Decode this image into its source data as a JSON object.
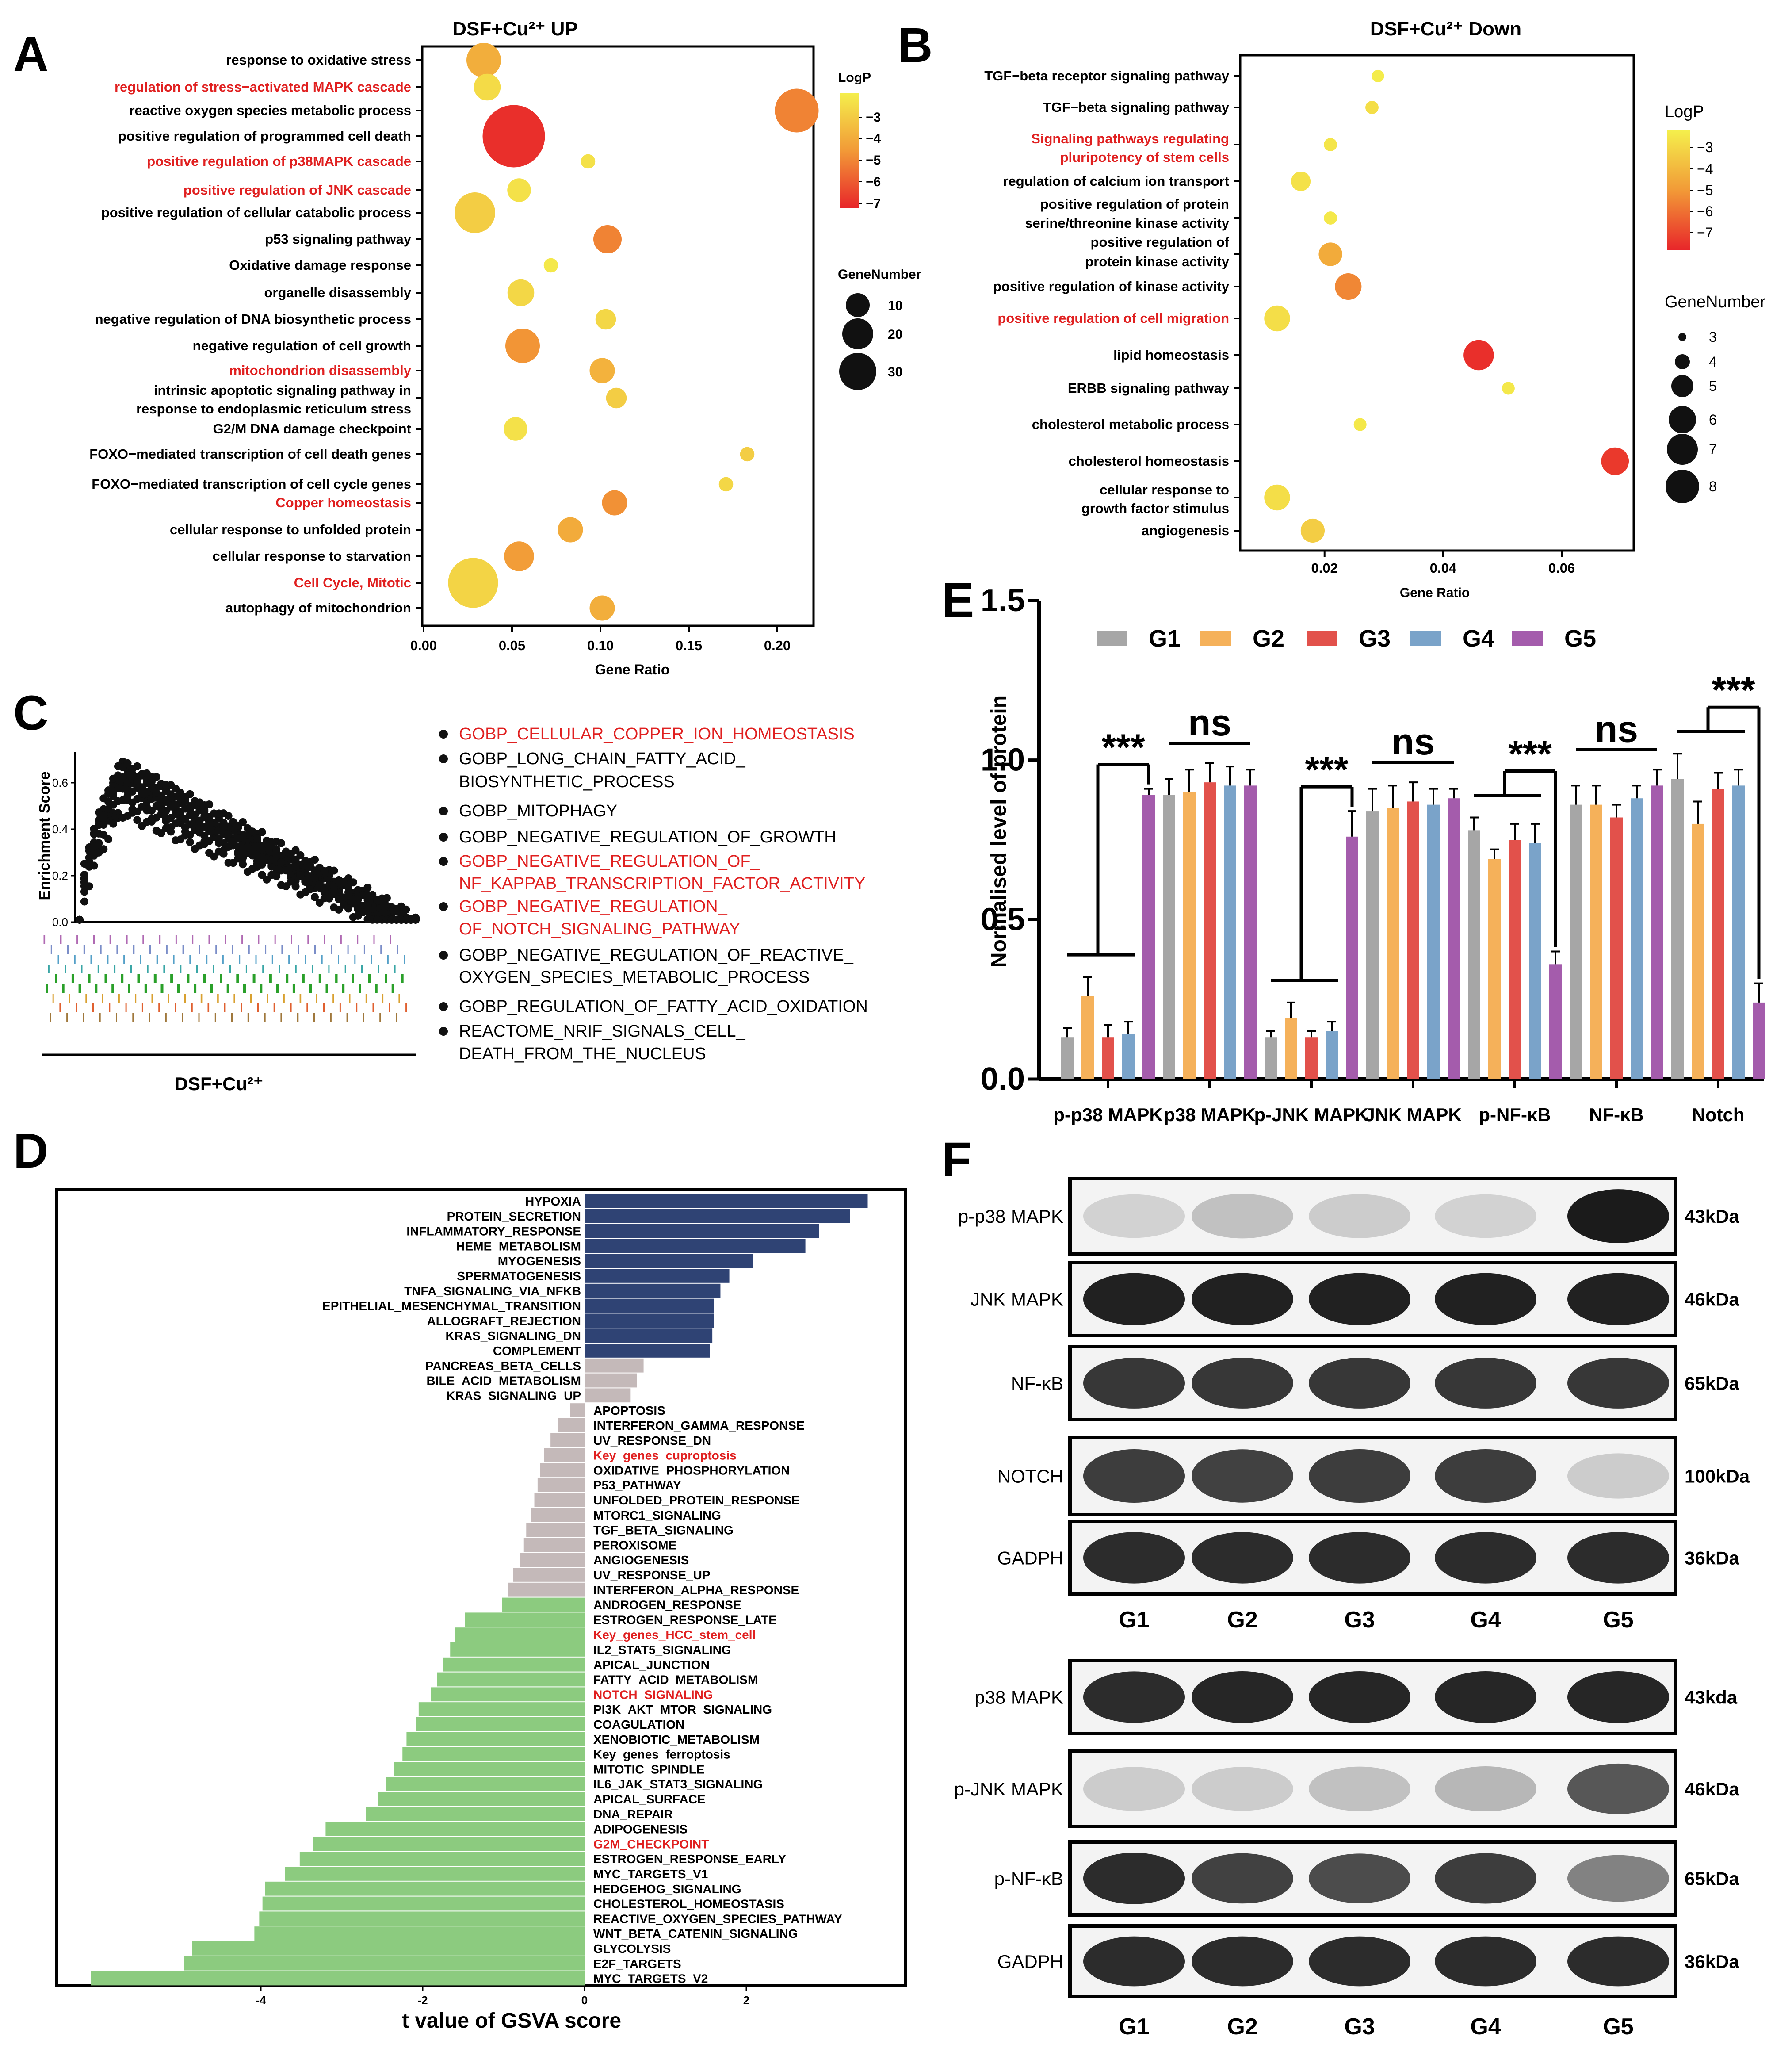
{
  "panel_letters": {
    "a": "A",
    "b": "B",
    "c": "C",
    "d": "D",
    "e": "E",
    "f": "F"
  },
  "panelA": {
    "title": "DSF+Cu²⁺ UP",
    "xlabel": "Gene Ratio",
    "xticks": [
      0.0,
      0.05,
      0.1,
      0.15,
      0.2
    ],
    "xtick_labels": [
      "0.00",
      "0.05",
      "0.10",
      "0.15",
      "0.20"
    ],
    "xlim": [
      0,
      0.22
    ],
    "logp_title": "LogP",
    "logp_ticks": [
      "−3",
      "−4",
      "−5",
      "−6",
      "−7"
    ],
    "genenumber_title": "GeneNumber",
    "genenumber_values": [
      "10",
      "20",
      "30"
    ],
    "terms": [
      {
        "label": "response to oxidative stress",
        "ratio": 0.034,
        "genes": 16,
        "logp": -4.5,
        "red": false
      },
      {
        "label": "regulation of stress−activated MAPK cascade",
        "ratio": 0.036,
        "genes": 11,
        "logp": -3.2,
        "red": true
      },
      {
        "label": "reactive oxygen species metabolic process",
        "ratio": 0.211,
        "genes": 22,
        "logp": -5.6,
        "red": false
      },
      {
        "label": "positive regulation of programmed cell death",
        "ratio": 0.051,
        "genes": 34,
        "logp": -7.4,
        "red": false
      },
      {
        "label": "positive regulation of p38MAPK cascade",
        "ratio": 0.093,
        "genes": 3,
        "logp": -3.0,
        "red": true
      },
      {
        "label": "positive regulation of JNK cascade",
        "ratio": 0.054,
        "genes": 9,
        "logp": -3.0,
        "red": true
      },
      {
        "label": "positive regulation of cellular catabolic process",
        "ratio": 0.029,
        "genes": 20,
        "logp": -3.6,
        "red": false
      },
      {
        "label": "p53 signaling pathway",
        "ratio": 0.104,
        "genes": 12,
        "logp": -5.6,
        "red": false
      },
      {
        "label": "Oxidative damage response",
        "ratio": 0.072,
        "genes": 3,
        "logp": -2.8,
        "red": false
      },
      {
        "label": "organelle disassembly",
        "ratio": 0.055,
        "genes": 11,
        "logp": -3.3,
        "red": false
      },
      {
        "label": "negative regulation of DNA biosynthetic process",
        "ratio": 0.103,
        "genes": 7,
        "logp": -3.3,
        "red": false
      },
      {
        "label": "negative regulation of cell growth",
        "ratio": 0.056,
        "genes": 16,
        "logp": -5.2,
        "red": false
      },
      {
        "label": "mitochondrion disassembly",
        "ratio": 0.101,
        "genes": 10,
        "logp": -4.4,
        "red": true
      },
      {
        "label": "intrinsic apoptotic signaling pathway in response to endoplasmic reticulum stress",
        "ratio": 0.109,
        "genes": 7,
        "logp": -3.6,
        "red": false
      },
      {
        "label": "G2/M DNA damage checkpoint",
        "ratio": 0.052,
        "genes": 9,
        "logp": -3.0,
        "red": false
      },
      {
        "label": "FOXO−mediated transcription of cell death genes",
        "ratio": 0.183,
        "genes": 3,
        "logp": -3.6,
        "red": false
      },
      {
        "label": "FOXO−mediated transcription of cell cycle genes",
        "ratio": 0.171,
        "genes": 3,
        "logp": -3.3,
        "red": false
      },
      {
        "label": "Copper homeostasis",
        "ratio": 0.108,
        "genes": 10,
        "logp": -5.3,
        "red": true
      },
      {
        "label": "cellular response to unfolded protein",
        "ratio": 0.083,
        "genes": 10,
        "logp": -4.6,
        "red": false
      },
      {
        "label": "cellular response to starvation",
        "ratio": 0.054,
        "genes": 13,
        "logp": -5.0,
        "red": false
      },
      {
        "label": "Cell Cycle, Mitotic",
        "ratio": 0.028,
        "genes": 26,
        "logp": -3.4,
        "red": true
      },
      {
        "label": "autophagy of mitochondrion",
        "ratio": 0.101,
        "genes": 10,
        "logp": -4.5,
        "red": false
      }
    ]
  },
  "panelB": {
    "title": "DSF+Cu²⁺ Down",
    "xlabel": "Gene Ratio",
    "xticks": [
      0.02,
      0.04,
      0.06
    ],
    "xtick_labels": [
      "0.02",
      "0.04",
      "0.06"
    ],
    "xlim": [
      0.006,
      0.072
    ],
    "logp_title": "LogP",
    "logp_ticks": [
      "−3",
      "−4",
      "−5",
      "−6",
      "−7"
    ],
    "genenumber_title": "GeneNumber",
    "genenumber_values": [
      "3",
      "4",
      "5",
      "6",
      "7",
      "8"
    ],
    "terms": [
      {
        "label": "TGF−beta receptor signaling pathway",
        "ratio": 0.029,
        "genes": 2.4,
        "logp": -2.7,
        "red": false
      },
      {
        "label": "TGF−beta signaling pathway",
        "ratio": 0.028,
        "genes": 2.6,
        "logp": -3.1,
        "red": false
      },
      {
        "label": "Signaling pathways regulating pluripotency of stem cells",
        "ratio": 0.021,
        "genes": 2.6,
        "logp": -2.9,
        "red": true
      },
      {
        "label": "regulation of calcium ion transport",
        "ratio": 0.016,
        "genes": 4.3,
        "logp": -3.0,
        "red": false
      },
      {
        "label": "positive regulation of protein serine/threonine kinase activity",
        "ratio": 0.021,
        "genes": 2.6,
        "logp": -2.8,
        "red": false
      },
      {
        "label": "positive regulation of protein kinase activity",
        "ratio": 0.021,
        "genes": 5.4,
        "logp": -4.6,
        "red": false
      },
      {
        "label": "positive regulation of kinase activity",
        "ratio": 0.024,
        "genes": 6.2,
        "logp": -5.5,
        "red": false
      },
      {
        "label": "positive regulation of cell migration",
        "ratio": 0.012,
        "genes": 6.0,
        "logp": -3.1,
        "red": true
      },
      {
        "label": "lipid homeostasis",
        "ratio": 0.046,
        "genes": 7.2,
        "logp": -7.4,
        "red": false
      },
      {
        "label": "ERBB signaling pathway",
        "ratio": 0.051,
        "genes": 2.5,
        "logp": -2.8,
        "red": false
      },
      {
        "label": "cholesterol metabolic process",
        "ratio": 0.026,
        "genes": 2.5,
        "logp": -2.8,
        "red": false
      },
      {
        "label": "cholesterol homeostasis",
        "ratio": 0.069,
        "genes": 6.5,
        "logp": -7.2,
        "red": false
      },
      {
        "label": "cellular response to growth factor stimulus",
        "ratio": 0.012,
        "genes": 6.0,
        "logp": -3.1,
        "red": false
      },
      {
        "label": "angiogenesis",
        "ratio": 0.018,
        "genes": 5.5,
        "logp": -3.6,
        "red": false
      }
    ]
  },
  "panelC": {
    "ylabel": "Enrichment Score",
    "yticks": [
      "0.0",
      "0.2",
      "0.4",
      "0.6"
    ],
    "xlabel": "DSF+Cu²⁺",
    "legend": [
      {
        "lines": [
          "GOBP_CELLULAR_COPPER_ION_HOMEOSTASIS"
        ],
        "red": true
      },
      {
        "lines": [
          "GOBP_LONG_CHAIN_FATTY_ACID_",
          "BIOSYNTHETIC_PROCESS"
        ],
        "red": false
      },
      {
        "lines": [
          "GOBP_MITOPHAGY"
        ],
        "red": false
      },
      {
        "lines": [
          "GOBP_NEGATIVE_REGULATION_OF_GROWTH"
        ],
        "red": false
      },
      {
        "lines": [
          "GOBP_NEGATIVE_REGULATION_OF_",
          "NF_KAPPAB_TRANSCRIPTION_FACTOR_ACTIVITY"
        ],
        "red": true
      },
      {
        "lines": [
          "GOBP_NEGATIVE_REGULATION_",
          "OF_NOTCH_SIGNALING_PATHWAY"
        ],
        "red": true
      },
      {
        "lines": [
          "GOBP_NEGATIVE_REGULATION_OF_REACTIVE_",
          "OXYGEN_SPECIES_METABOLIC_PROCESS"
        ],
        "red": false
      },
      {
        "lines": [
          "GOBP_REGULATION_OF_FATTY_ACID_OXIDATION"
        ],
        "red": false
      },
      {
        "lines": [
          "REACTOME_NRIF_SIGNALS_CELL_",
          "DEATH_FROM_THE_NUCLEUS"
        ],
        "red": false
      }
    ]
  },
  "panelD": {
    "xlabel": "t value of GSVA score",
    "xticks": [
      -4,
      -2,
      0,
      2
    ],
    "xtick_labels": [
      "-4",
      "-2",
      "0",
      "2"
    ],
    "xlim": [
      -6.5,
      4.0
    ],
    "colors": {
      "up": "#2f4374",
      "neutral": "#c4b9b9",
      "down": "#8ccb7f",
      "red": "#e02020"
    },
    "bars": [
      {
        "label": "HYPOXIA",
        "t": 3.5,
        "cat": "up",
        "red": false
      },
      {
        "label": "PROTEIN_SECRETION",
        "t": 3.28,
        "cat": "up",
        "red": false
      },
      {
        "label": "INFLAMMATORY_RESPONSE",
        "t": 2.9,
        "cat": "up",
        "red": false
      },
      {
        "label": "HEME_METABOLISM",
        "t": 2.73,
        "cat": "up",
        "red": false
      },
      {
        "label": "MYOGENESIS",
        "t": 2.08,
        "cat": "up",
        "red": false
      },
      {
        "label": "SPERMATOGENESIS",
        "t": 1.79,
        "cat": "up",
        "red": false
      },
      {
        "label": "TNFA_SIGNALING_VIA_NFKB",
        "t": 1.68,
        "cat": "up",
        "red": false
      },
      {
        "label": "EPITHELIAL_MESENCHYMAL_TRANSITION",
        "t": 1.6,
        "cat": "up",
        "red": false
      },
      {
        "label": "ALLOGRAFT_REJECTION",
        "t": 1.6,
        "cat": "up",
        "red": false
      },
      {
        "label": "KRAS_SIGNALING_DN",
        "t": 1.58,
        "cat": "up",
        "red": false
      },
      {
        "label": "COMPLEMENT",
        "t": 1.55,
        "cat": "up",
        "red": false
      },
      {
        "label": "PANCREAS_BETA_CELLS",
        "t": 0.73,
        "cat": "neutral",
        "red": false
      },
      {
        "label": "BILE_ACID_METABOLISM",
        "t": 0.65,
        "cat": "neutral",
        "red": false
      },
      {
        "label": "KRAS_SIGNALING_UP",
        "t": 0.57,
        "cat": "neutral",
        "red": false
      },
      {
        "label": "APOPTOSIS",
        "t": -0.18,
        "cat": "neutral",
        "red": false
      },
      {
        "label": "INTERFERON_GAMMA_RESPONSE",
        "t": -0.33,
        "cat": "neutral",
        "red": false
      },
      {
        "label": "UV_RESPONSE_DN",
        "t": -0.42,
        "cat": "neutral",
        "red": false
      },
      {
        "label": "Key_genes_cuproptosis",
        "t": -0.5,
        "cat": "neutral",
        "red": true
      },
      {
        "label": "OXIDATIVE_PHOSPHORYLATION",
        "t": -0.55,
        "cat": "neutral",
        "red": false
      },
      {
        "label": "P53_PATHWAY",
        "t": -0.58,
        "cat": "neutral",
        "red": false
      },
      {
        "label": "UNFOLDED_PROTEIN_RESPONSE",
        "t": -0.62,
        "cat": "neutral",
        "red": false
      },
      {
        "label": "MTORC1_SIGNALING",
        "t": -0.66,
        "cat": "neutral",
        "red": false
      },
      {
        "label": "TGF_BETA_SIGNALING",
        "t": -0.72,
        "cat": "neutral",
        "red": false
      },
      {
        "label": "PEROXISOME",
        "t": -0.75,
        "cat": "neutral",
        "red": false
      },
      {
        "label": "ANGIOGENESIS",
        "t": -0.8,
        "cat": "neutral",
        "red": false
      },
      {
        "label": "UV_RESPONSE_UP",
        "t": -0.88,
        "cat": "neutral",
        "red": false
      },
      {
        "label": "INTERFERON_ALPHA_RESPONSE",
        "t": -0.95,
        "cat": "neutral",
        "red": false
      },
      {
        "label": "ANDROGEN_RESPONSE",
        "t": -1.02,
        "cat": "down",
        "red": false
      },
      {
        "label": "ESTROGEN_RESPONSE_LATE",
        "t": -1.48,
        "cat": "down",
        "red": false
      },
      {
        "label": "Key_genes_HCC_stem_cell",
        "t": -1.6,
        "cat": "down",
        "red": true
      },
      {
        "label": "IL2_STAT5_SIGNALING",
        "t": -1.66,
        "cat": "down",
        "red": false
      },
      {
        "label": "APICAL_JUNCTION",
        "t": -1.75,
        "cat": "down",
        "red": false
      },
      {
        "label": "FATTY_ACID_METABOLISM",
        "t": -1.82,
        "cat": "down",
        "red": false
      },
      {
        "label": "NOTCH_SIGNALING",
        "t": -1.9,
        "cat": "down",
        "red": true
      },
      {
        "label": "PI3K_AKT_MTOR_SIGNALING",
        "t": -2.05,
        "cat": "down",
        "red": false
      },
      {
        "label": "COAGULATION",
        "t": -2.08,
        "cat": "down",
        "red": false
      },
      {
        "label": "XENOBIOTIC_METABOLISM",
        "t": -2.2,
        "cat": "down",
        "red": false
      },
      {
        "label": "Key_genes_ferroptosis",
        "t": -2.25,
        "cat": "down",
        "red": false
      },
      {
        "label": "MITOTIC_SPINDLE",
        "t": -2.35,
        "cat": "down",
        "red": false
      },
      {
        "label": "IL6_JAK_STAT3_SIGNALING",
        "t": -2.45,
        "cat": "down",
        "red": false
      },
      {
        "label": "APICAL_SURFACE",
        "t": -2.55,
        "cat": "down",
        "red": false
      },
      {
        "label": "DNA_REPAIR",
        "t": -2.7,
        "cat": "down",
        "red": false
      },
      {
        "label": "ADIPOGENESIS",
        "t": -3.2,
        "cat": "down",
        "red": false
      },
      {
        "label": "G2M_CHECKPOINT",
        "t": -3.35,
        "cat": "down",
        "red": true
      },
      {
        "label": "ESTROGEN_RESPONSE_EARLY",
        "t": -3.52,
        "cat": "down",
        "red": false
      },
      {
        "label": "MYC_TARGETS_V1",
        "t": -3.7,
        "cat": "down",
        "red": false
      },
      {
        "label": "HEDGEHOG_SIGNALING",
        "t": -3.95,
        "cat": "down",
        "red": false
      },
      {
        "label": "CHOLESTEROL_HOMEOSTASIS",
        "t": -3.98,
        "cat": "down",
        "red": false
      },
      {
        "label": "REACTIVE_OXYGEN_SPECIES_PATHWAY",
        "t": -4.02,
        "cat": "down",
        "red": false
      },
      {
        "label": "WNT_BETA_CATENIN_SIGNALING",
        "t": -4.08,
        "cat": "down",
        "red": false
      },
      {
        "label": "GLYCOLYSIS",
        "t": -4.85,
        "cat": "down",
        "red": false
      },
      {
        "label": "E2F_TARGETS",
        "t": -4.95,
        "cat": "down",
        "red": false
      },
      {
        "label": "MYC_TARGETS_V2",
        "t": -6.1,
        "cat": "down",
        "red": false
      }
    ]
  },
  "panelE": {
    "ylabel": "Normalised level of protein",
    "ylim": [
      0,
      1.5
    ],
    "yticks": [
      0.0,
      0.5,
      1.0,
      1.5
    ],
    "ytick_labels": [
      "0.0",
      "0.5",
      "1.0",
      "1.5"
    ],
    "series_names": [
      "G1",
      "G2",
      "G3",
      "G4",
      "G5"
    ],
    "series_colors": [
      "#a6a6a6",
      "#f5b15a",
      "#e2514b",
      "#7aa3c9",
      "#a45cac"
    ],
    "categories": [
      "p-p38 MAPK",
      "p38 MAPK",
      "p-JNK MAPK",
      "JNK MAPK",
      "p-NF-κB",
      "NF-κB",
      "Notch"
    ],
    "values": [
      [
        0.13,
        0.26,
        0.13,
        0.14,
        0.89
      ],
      [
        0.89,
        0.9,
        0.93,
        0.92,
        0.92
      ],
      [
        0.13,
        0.19,
        0.13,
        0.15,
        0.76
      ],
      [
        0.84,
        0.85,
        0.87,
        0.86,
        0.88
      ],
      [
        0.78,
        0.69,
        0.75,
        0.74,
        0.36
      ],
      [
        0.86,
        0.86,
        0.82,
        0.88,
        0.92
      ],
      [
        0.94,
        0.8,
        0.91,
        0.92,
        0.24
      ]
    ],
    "errors": [
      [
        0.03,
        0.06,
        0.04,
        0.04,
        0.02
      ],
      [
        0.05,
        0.07,
        0.06,
        0.06,
        0.05
      ],
      [
        0.02,
        0.05,
        0.02,
        0.03,
        0.08
      ],
      [
        0.07,
        0.07,
        0.06,
        0.05,
        0.03
      ],
      [
        0.04,
        0.03,
        0.05,
        0.06,
        0.04
      ],
      [
        0.06,
        0.06,
        0.04,
        0.04,
        0.05
      ],
      [
        0.08,
        0.07,
        0.05,
        0.05,
        0.06
      ]
    ],
    "significance": [
      {
        "cat": 0,
        "label": "***",
        "type": "pair"
      },
      {
        "cat": 1,
        "label": "ns",
        "type": "group"
      },
      {
        "cat": 2,
        "label": "***",
        "type": "pair"
      },
      {
        "cat": 3,
        "label": "ns",
        "type": "group"
      },
      {
        "cat": 4,
        "label": "***",
        "type": "pair"
      },
      {
        "cat": 5,
        "label": "ns",
        "type": "group"
      },
      {
        "cat": 6,
        "label": "***",
        "type": "pair"
      }
    ]
  },
  "panelF": {
    "top_blots": [
      {
        "name": "p-p38 MAPK",
        "size": "43kDa",
        "intensities": [
          0.12,
          0.2,
          0.15,
          0.12,
          0.98
        ]
      },
      {
        "name": "JNK MAPK",
        "size": "46kDa",
        "intensities": [
          0.95,
          0.95,
          0.95,
          0.95,
          0.95
        ]
      },
      {
        "name": "NF-κB",
        "size": "65kDa",
        "intensities": [
          0.85,
          0.85,
          0.85,
          0.85,
          0.85
        ]
      },
      {
        "name": "NOTCH",
        "size": "100kDa",
        "intensities": [
          0.82,
          0.8,
          0.82,
          0.82,
          0.15
        ]
      },
      {
        "name": "GADPH",
        "size": "36kDa",
        "intensities": [
          0.9,
          0.9,
          0.9,
          0.9,
          0.9
        ]
      }
    ],
    "bottom_blots": [
      {
        "name": "p38 MAPK",
        "size": "43kda",
        "intensities": [
          0.9,
          0.93,
          0.93,
          0.93,
          0.93
        ]
      },
      {
        "name": "p-JNK MAPK",
        "size": "46kDa",
        "intensities": [
          0.15,
          0.15,
          0.2,
          0.25,
          0.7
        ]
      },
      {
        "name": "p-NF-κB",
        "size": "65kDa",
        "intensities": [
          0.9,
          0.8,
          0.75,
          0.82,
          0.5
        ]
      },
      {
        "name": "GADPH",
        "size": "36kDa",
        "intensities": [
          0.9,
          0.9,
          0.9,
          0.9,
          0.9
        ]
      }
    ],
    "lanes": [
      "G1",
      "G2",
      "G3",
      "G4",
      "G5"
    ]
  }
}
